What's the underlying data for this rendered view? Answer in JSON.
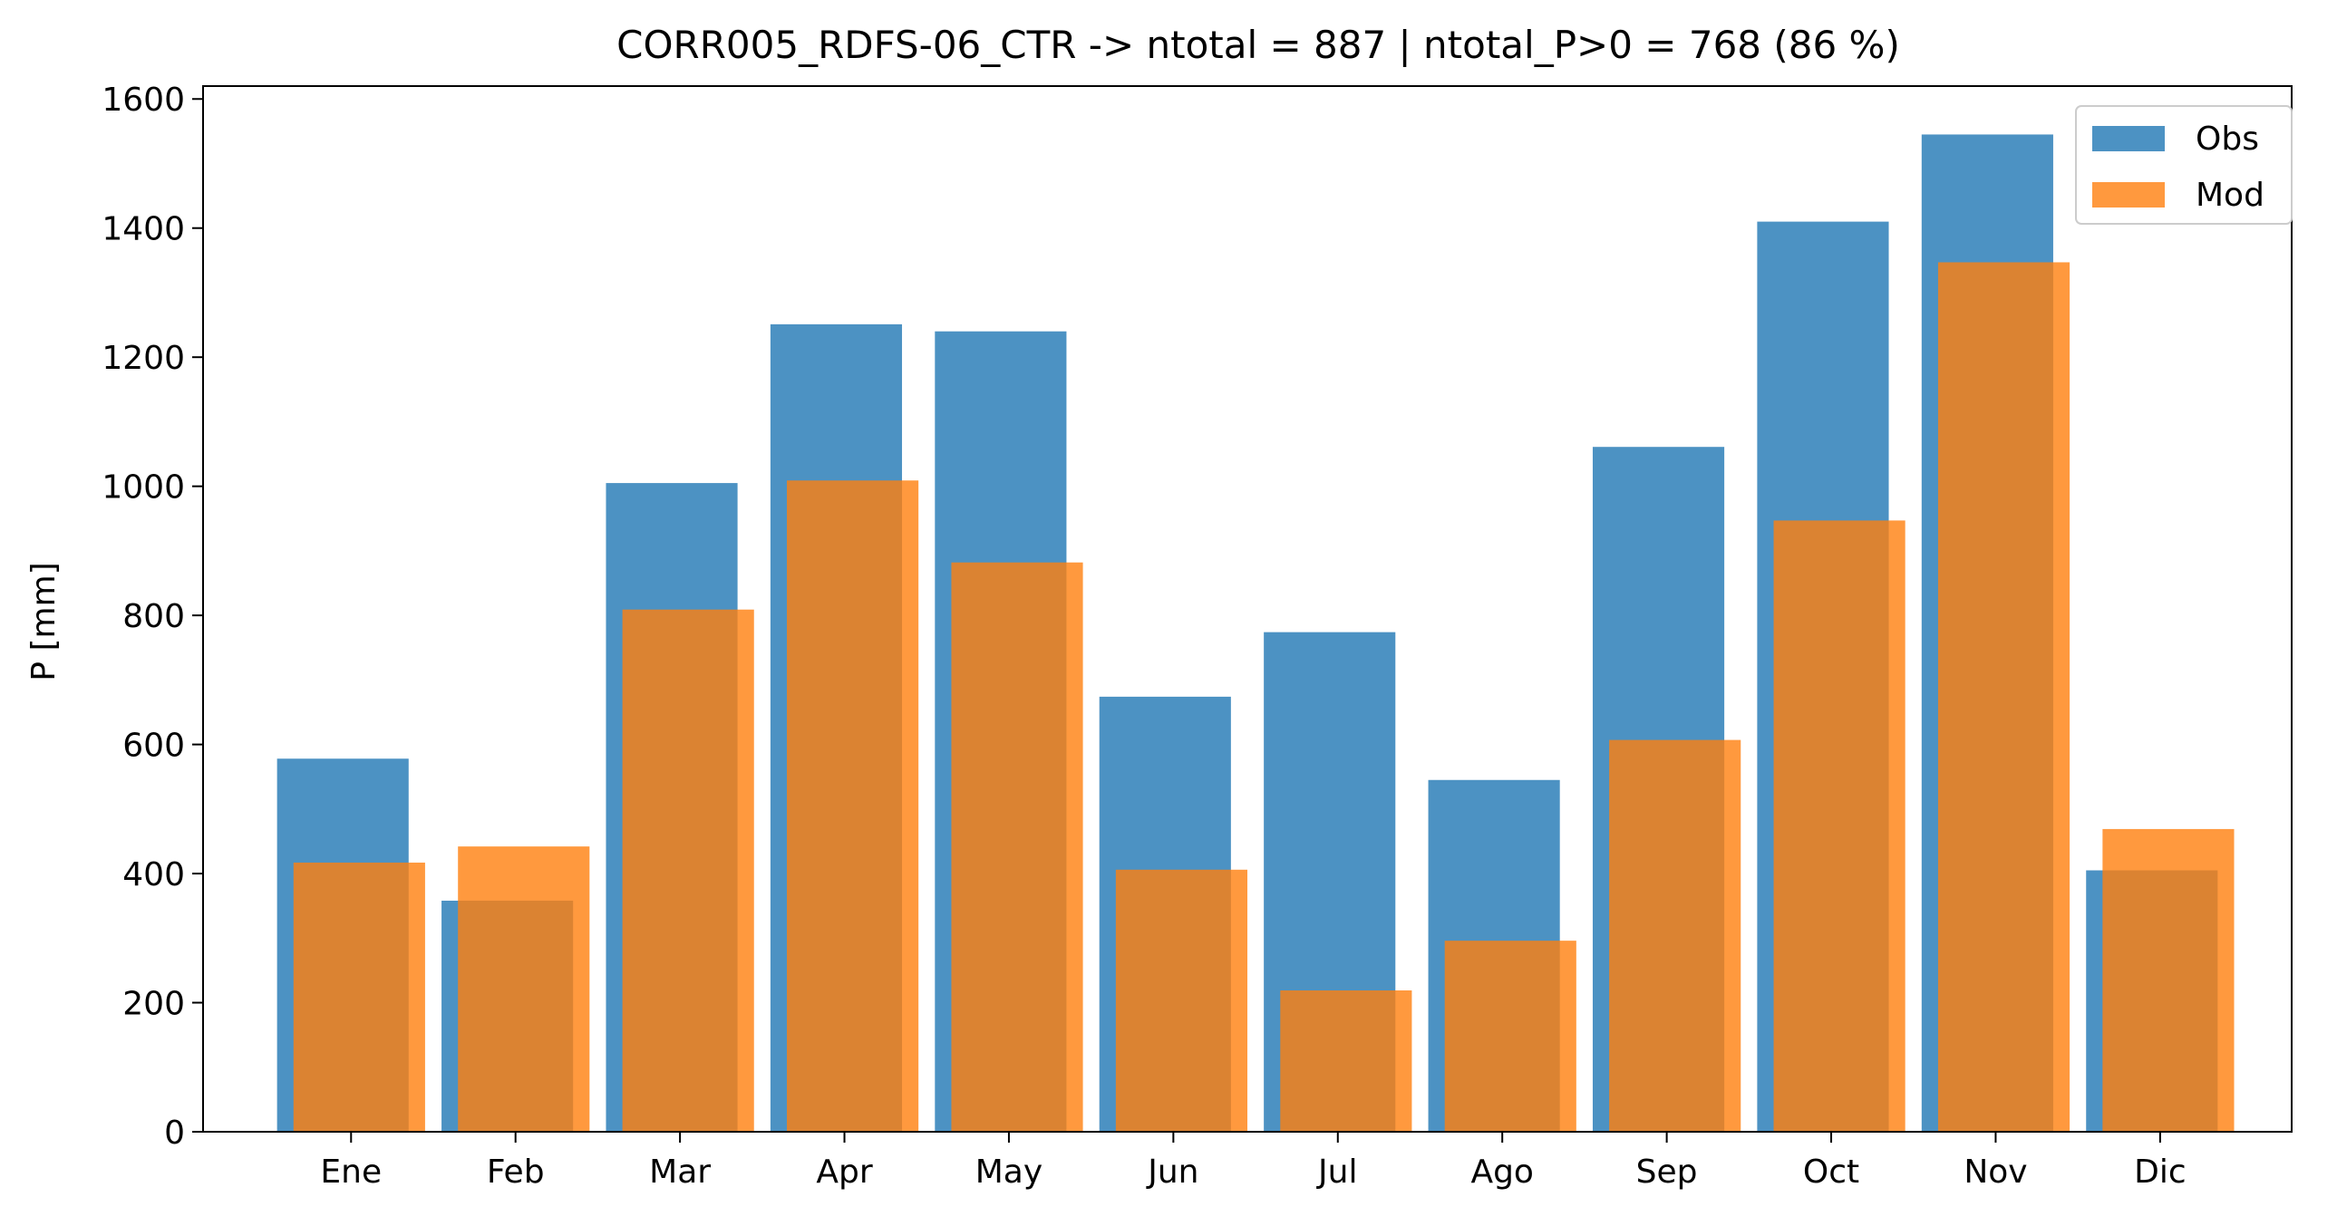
{
  "chart_data": {
    "type": "bar",
    "title": "CORR005_RDFS-06_CTR -> ntotal = 887 | ntotal_P>0 = 768 (86 %)",
    "xlabel": "",
    "ylabel": "P [mm]",
    "ylim": [
      0,
      1620
    ],
    "yticks": [
      0,
      200,
      400,
      600,
      800,
      1000,
      1200,
      1400,
      1600
    ],
    "categories": [
      "Ene",
      "Feb",
      "Mar",
      "Apr",
      "May",
      "Jun",
      "Jul",
      "Ago",
      "Sep",
      "Oct",
      "Nov",
      "Dic"
    ],
    "series": [
      {
        "name": "Obs",
        "color": "#1f77b4",
        "values": [
          578,
          358,
          1005,
          1251,
          1240,
          674,
          774,
          545,
          1061,
          1410,
          1545,
          405
        ]
      },
      {
        "name": "Mod",
        "color": "#ff7f0e",
        "values": [
          417,
          442,
          809,
          1009,
          882,
          406,
          219,
          296,
          607,
          947,
          1347,
          469
        ]
      }
    ],
    "grid": false,
    "legend": "top-right"
  }
}
